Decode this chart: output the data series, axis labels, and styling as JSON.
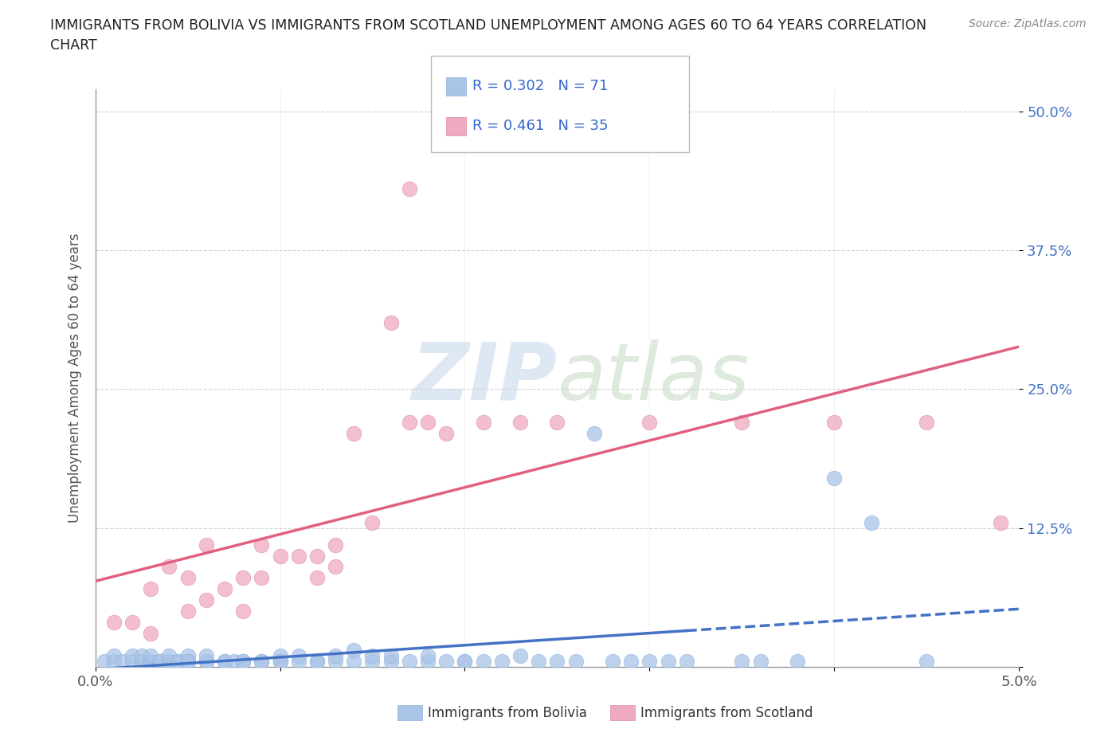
{
  "title_line1": "IMMIGRANTS FROM BOLIVIA VS IMMIGRANTS FROM SCOTLAND UNEMPLOYMENT AMONG AGES 60 TO 64 YEARS CORRELATION",
  "title_line2": "CHART",
  "source": "Source: ZipAtlas.com",
  "ylabel": "Unemployment Among Ages 60 to 64 years",
  "xlim": [
    0.0,
    0.05
  ],
  "ylim": [
    0.0,
    0.52
  ],
  "xticks": [
    0.0,
    0.01,
    0.02,
    0.03,
    0.04,
    0.05
  ],
  "xtick_labels": [
    "0.0%",
    "",
    "",
    "",
    "",
    "5.0%"
  ],
  "yticks": [
    0.0,
    0.125,
    0.25,
    0.375,
    0.5
  ],
  "ytick_labels": [
    "",
    "12.5%",
    "25.0%",
    "37.5%",
    "50.0%"
  ],
  "bolivia_color": "#aac4e8",
  "scotland_color": "#f0aac0",
  "bolivia_line_color": "#4472c4",
  "scotland_line_color": "#e06080",
  "R_bolivia": 0.302,
  "N_bolivia": 71,
  "R_scotland": 0.461,
  "N_scotland": 35,
  "legend_label_bolivia": "Immigrants from Bolivia",
  "legend_label_scotland": "Immigrants from Scotland",
  "watermark_zip": "ZIP",
  "watermark_atlas": "atlas",
  "bolivia_scatter": [
    [
      0.0005,
      0.005
    ],
    [
      0.001,
      0.005
    ],
    [
      0.001,
      0.01
    ],
    [
      0.0015,
      0.005
    ],
    [
      0.002,
      0.005
    ],
    [
      0.002,
      0.01
    ],
    [
      0.0025,
      0.005
    ],
    [
      0.0025,
      0.01
    ],
    [
      0.003,
      0.005
    ],
    [
      0.003,
      0.005
    ],
    [
      0.003,
      0.005
    ],
    [
      0.003,
      0.01
    ],
    [
      0.0035,
      0.005
    ],
    [
      0.0035,
      0.005
    ],
    [
      0.004,
      0.005
    ],
    [
      0.004,
      0.005
    ],
    [
      0.004,
      0.01
    ],
    [
      0.0045,
      0.005
    ],
    [
      0.0045,
      0.005
    ],
    [
      0.005,
      0.005
    ],
    [
      0.005,
      0.01
    ],
    [
      0.005,
      0.005
    ],
    [
      0.006,
      0.005
    ],
    [
      0.006,
      0.005
    ],
    [
      0.006,
      0.01
    ],
    [
      0.007,
      0.005
    ],
    [
      0.007,
      0.005
    ],
    [
      0.0075,
      0.005
    ],
    [
      0.008,
      0.005
    ],
    [
      0.008,
      0.005
    ],
    [
      0.009,
      0.005
    ],
    [
      0.009,
      0.005
    ],
    [
      0.01,
      0.005
    ],
    [
      0.01,
      0.01
    ],
    [
      0.01,
      0.005
    ],
    [
      0.011,
      0.005
    ],
    [
      0.011,
      0.01
    ],
    [
      0.012,
      0.005
    ],
    [
      0.012,
      0.005
    ],
    [
      0.013,
      0.005
    ],
    [
      0.013,
      0.01
    ],
    [
      0.014,
      0.005
    ],
    [
      0.014,
      0.015
    ],
    [
      0.015,
      0.005
    ],
    [
      0.015,
      0.01
    ],
    [
      0.016,
      0.005
    ],
    [
      0.016,
      0.01
    ],
    [
      0.017,
      0.005
    ],
    [
      0.018,
      0.005
    ],
    [
      0.018,
      0.01
    ],
    [
      0.019,
      0.005
    ],
    [
      0.02,
      0.005
    ],
    [
      0.02,
      0.005
    ],
    [
      0.021,
      0.005
    ],
    [
      0.022,
      0.005
    ],
    [
      0.023,
      0.01
    ],
    [
      0.024,
      0.005
    ],
    [
      0.025,
      0.005
    ],
    [
      0.026,
      0.005
    ],
    [
      0.027,
      0.21
    ],
    [
      0.028,
      0.005
    ],
    [
      0.029,
      0.005
    ],
    [
      0.03,
      0.005
    ],
    [
      0.031,
      0.005
    ],
    [
      0.032,
      0.005
    ],
    [
      0.035,
      0.005
    ],
    [
      0.036,
      0.005
    ],
    [
      0.038,
      0.005
    ],
    [
      0.04,
      0.17
    ],
    [
      0.042,
      0.13
    ],
    [
      0.045,
      0.005
    ]
  ],
  "scotland_scatter": [
    [
      0.001,
      0.04
    ],
    [
      0.002,
      0.04
    ],
    [
      0.003,
      0.07
    ],
    [
      0.003,
      0.03
    ],
    [
      0.004,
      0.09
    ],
    [
      0.005,
      0.05
    ],
    [
      0.005,
      0.08
    ],
    [
      0.006,
      0.06
    ],
    [
      0.006,
      0.11
    ],
    [
      0.007,
      0.07
    ],
    [
      0.008,
      0.08
    ],
    [
      0.008,
      0.05
    ],
    [
      0.009,
      0.11
    ],
    [
      0.009,
      0.08
    ],
    [
      0.01,
      0.1
    ],
    [
      0.011,
      0.1
    ],
    [
      0.012,
      0.1
    ],
    [
      0.012,
      0.08
    ],
    [
      0.013,
      0.11
    ],
    [
      0.013,
      0.09
    ],
    [
      0.014,
      0.21
    ],
    [
      0.015,
      0.13
    ],
    [
      0.016,
      0.31
    ],
    [
      0.017,
      0.22
    ],
    [
      0.017,
      0.43
    ],
    [
      0.018,
      0.22
    ],
    [
      0.019,
      0.21
    ],
    [
      0.021,
      0.22
    ],
    [
      0.023,
      0.22
    ],
    [
      0.025,
      0.22
    ],
    [
      0.03,
      0.22
    ],
    [
      0.035,
      0.22
    ],
    [
      0.04,
      0.22
    ],
    [
      0.045,
      0.22
    ],
    [
      0.049,
      0.13
    ]
  ]
}
